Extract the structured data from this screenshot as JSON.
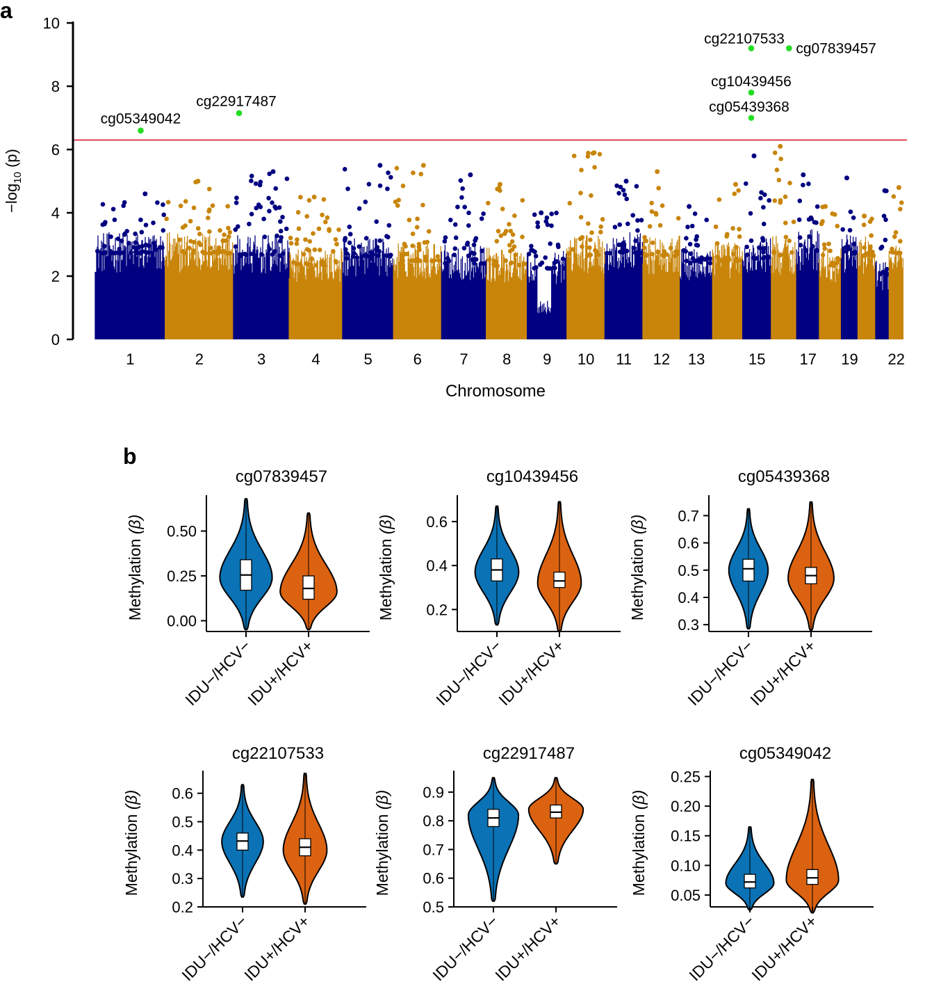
{
  "colors": {
    "blue": "#000080",
    "gold": "#c8850a",
    "highlight": "#22dd22",
    "threshold": "#d9233c",
    "violin_a": "#0a72b5",
    "violin_b": "#db6210"
  },
  "chart_data": [
    {
      "panel_label": "a",
      "type": "scatter",
      "subtype": "manhattan",
      "ylabel_prefix": "−log",
      "ylabel_sub": "10",
      "ylabel_suffix": " (p)",
      "xlabel": "Chromosome",
      "ylim": [
        0,
        10
      ],
      "y_ticks": [
        "0",
        "2",
        "4",
        "6",
        "8",
        "10"
      ],
      "threshold": 6.3,
      "chromosomes": [
        {
          "chr": "1",
          "label": "1",
          "size": 249,
          "max": 4.6,
          "base": 3.4
        },
        {
          "chr": "2",
          "label": "2",
          "size": 243,
          "max": 5.0,
          "base": 3.4
        },
        {
          "chr": "3",
          "label": "3",
          "size": 198,
          "max": 5.3,
          "base": 3.3
        },
        {
          "chr": "4",
          "label": "4",
          "size": 190,
          "max": 4.5,
          "base": 2.9
        },
        {
          "chr": "5",
          "label": "5",
          "size": 181,
          "max": 5.5,
          "base": 3.2
        },
        {
          "chr": "6",
          "label": "6",
          "size": 171,
          "max": 5.5,
          "base": 3.1
        },
        {
          "chr": "7",
          "label": "7",
          "size": 159,
          "max": 5.2,
          "base": 3.0
        },
        {
          "chr": "8",
          "label": "8",
          "size": 146,
          "max": 4.9,
          "base": 2.9
        },
        {
          "chr": "9",
          "label": "9",
          "size": 141,
          "max": 4.0,
          "base": 2.8
        },
        {
          "chr": "10",
          "label": "10",
          "size": 135,
          "max": 5.9,
          "base": 3.3
        },
        {
          "chr": "11",
          "label": "11",
          "size": 135,
          "max": 5.0,
          "base": 3.4
        },
        {
          "chr": "12",
          "label": "12",
          "size": 133,
          "max": 5.3,
          "base": 3.3
        },
        {
          "chr": "13",
          "label": "13",
          "size": 115,
          "max": 4.2,
          "base": 3.0
        },
        {
          "chr": "14",
          "label": "",
          "size": 107,
          "max": 4.9,
          "base": 3.1
        },
        {
          "chr": "15",
          "label": "15",
          "size": 102,
          "max": 5.8,
          "base": 3.2
        },
        {
          "chr": "16",
          "label": "",
          "size": 90,
          "max": 6.1,
          "base": 3.3
        },
        {
          "chr": "17",
          "label": "17",
          "size": 81,
          "max": 5.2,
          "base": 3.5
        },
        {
          "chr": "18",
          "label": "",
          "size": 78,
          "max": 4.2,
          "base": 2.9
        },
        {
          "chr": "19",
          "label": "19",
          "size": 59,
          "max": 5.1,
          "base": 3.4
        },
        {
          "chr": "20",
          "label": "",
          "size": 63,
          "max": 3.9,
          "base": 3.3
        },
        {
          "chr": "21",
          "label": "",
          "size": 48,
          "max": 4.7,
          "base": 2.5
        },
        {
          "chr": "22",
          "label": "22",
          "size": 51,
          "max": 4.8,
          "base": 3.4
        }
      ],
      "significant": [
        {
          "probe": "cg05349042",
          "chr": "1",
          "pos": 0.65,
          "value": 6.6
        },
        {
          "probe": "cg22917487",
          "chr": "3",
          "pos": 0.1,
          "value": 7.15
        },
        {
          "probe": "cg22107533",
          "chr": "15",
          "pos": 0.3,
          "value": 9.2
        },
        {
          "probe": "cg10439456",
          "chr": "15",
          "pos": 0.3,
          "value": 7.8
        },
        {
          "probe": "cg05439368",
          "chr": "15",
          "pos": 0.3,
          "value": 7.0
        },
        {
          "probe": "cg07839457",
          "chr": "16",
          "pos": 0.7,
          "value": 9.2
        }
      ]
    },
    {
      "panel_label": "b",
      "type": "violin",
      "ylabel": "Methylation",
      "ylabel_symbol": "(β)",
      "groups": [
        "IDU−/HCV−",
        "IDU+/HCV+"
      ],
      "panels": [
        {
          "title": "cg07839457",
          "ylim": [
            -0.06,
            0.7
          ],
          "ticks": [
            "0.00",
            "0.25",
            "0.50"
          ],
          "tick_values": [
            0,
            0.25,
            0.5
          ],
          "violins": [
            {
              "min": -0.05,
              "q1": 0.17,
              "median": 0.255,
              "q3": 0.34,
              "max": 0.68,
              "mode": 0.24,
              "width": 0.24
            },
            {
              "min": -0.05,
              "q1": 0.12,
              "median": 0.18,
              "q3": 0.25,
              "max": 0.6,
              "mode": 0.16,
              "width": 0.26
            }
          ]
        },
        {
          "title": "cg10439456",
          "ylim": [
            0.1,
            0.72
          ],
          "ticks": [
            "0.2",
            "0.4",
            "0.6"
          ],
          "tick_values": [
            0.2,
            0.4,
            0.6
          ],
          "violins": [
            {
              "min": 0.13,
              "q1": 0.33,
              "median": 0.38,
              "q3": 0.43,
              "max": 0.67,
              "mode": 0.37,
              "width": 0.2
            },
            {
              "min": 0.1,
              "q1": 0.3,
              "median": 0.33,
              "q3": 0.37,
              "max": 0.69,
              "mode": 0.32,
              "width": 0.2
            }
          ]
        },
        {
          "title": "cg05439368",
          "ylim": [
            0.275,
            0.775
          ],
          "ticks": [
            "0.3",
            "0.4",
            "0.5",
            "0.6",
            "0.7"
          ],
          "tick_values": [
            0.3,
            0.4,
            0.5,
            0.6,
            0.7
          ],
          "violins": [
            {
              "min": 0.285,
              "q1": 0.46,
              "median": 0.505,
              "q3": 0.54,
              "max": 0.725,
              "mode": 0.5,
              "width": 0.18
            },
            {
              "min": 0.28,
              "q1": 0.45,
              "median": 0.48,
              "q3": 0.51,
              "max": 0.75,
              "mode": 0.47,
              "width": 0.21
            }
          ]
        },
        {
          "title": "cg22107533",
          "ylim": [
            0.2,
            0.68
          ],
          "ticks": [
            "0.2",
            "0.3",
            "0.4",
            "0.5",
            "0.6"
          ],
          "tick_values": [
            0.2,
            0.3,
            0.4,
            0.5,
            0.6
          ],
          "violins": [
            {
              "min": 0.235,
              "q1": 0.4,
              "median": 0.432,
              "q3": 0.46,
              "max": 0.63,
              "mode": 0.43,
              "width": 0.19
            },
            {
              "min": 0.21,
              "q1": 0.38,
              "median": 0.41,
              "q3": 0.44,
              "max": 0.67,
              "mode": 0.4,
              "width": 0.2
            }
          ]
        },
        {
          "title": "cg22917487",
          "ylim": [
            0.5,
            0.975
          ],
          "ticks": [
            "0.5",
            "0.6",
            "0.7",
            "0.8",
            "0.9"
          ],
          "tick_values": [
            0.5,
            0.6,
            0.7,
            0.8,
            0.9
          ],
          "violins": [
            {
              "min": 0.52,
              "q1": 0.78,
              "median": 0.81,
              "q3": 0.84,
              "max": 0.95,
              "mode": 0.82,
              "width": 0.23
            },
            {
              "min": 0.65,
              "q1": 0.81,
              "median": 0.83,
              "q3": 0.855,
              "max": 0.95,
              "mode": 0.84,
              "width": 0.25
            }
          ]
        },
        {
          "title": "cg05349042",
          "ylim": [
            0.03,
            0.26
          ],
          "ticks": [
            "0.05",
            "0.10",
            "0.15",
            "0.20",
            "0.25"
          ],
          "tick_values": [
            0.05,
            0.1,
            0.15,
            0.2,
            0.25
          ],
          "violins": [
            {
              "min": 0.025,
              "q1": 0.062,
              "median": 0.072,
              "q3": 0.085,
              "max": 0.165,
              "mode": 0.07,
              "width": 0.22
            },
            {
              "min": 0.02,
              "q1": 0.068,
              "median": 0.079,
              "q3": 0.093,
              "max": 0.245,
              "mode": 0.075,
              "width": 0.24
            }
          ]
        }
      ]
    }
  ]
}
